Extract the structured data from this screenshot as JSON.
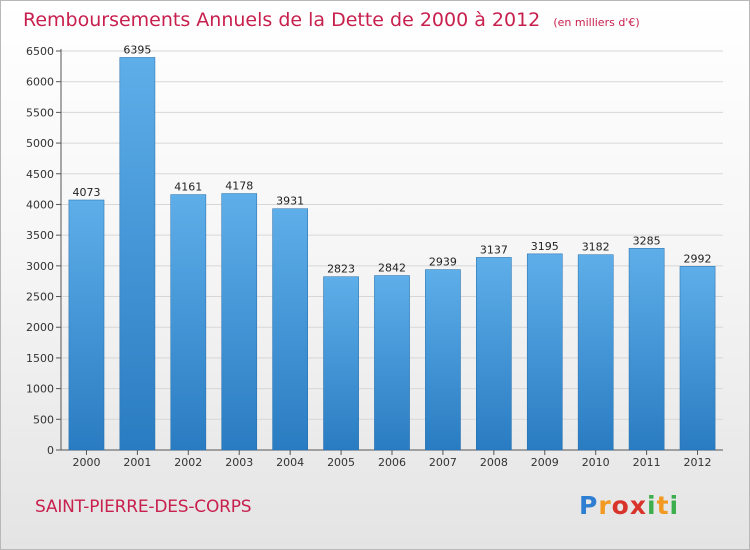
{
  "header": {
    "title": "Remboursements Annuels de la Dette de 2000 à 2012",
    "subtitle": "(en milliers d'€)"
  },
  "footer": {
    "city": "SAINT-PIERRE-DES-CORPS",
    "logo_text": "Proxiti"
  },
  "colors": {
    "bar_light": "#5eaee9",
    "bar_dark": "#2a7cc2",
    "title": "#c8204e"
  },
  "chart_data": {
    "type": "bar",
    "title": "Remboursements Annuels de la Dette de 2000 à 2012",
    "subtitle": "(en milliers d'€)",
    "categories": [
      "2000",
      "2001",
      "2002",
      "2003",
      "2004",
      "2005",
      "2006",
      "2007",
      "2008",
      "2009",
      "2010",
      "2011",
      "2012"
    ],
    "values": [
      4073,
      6395,
      4161,
      4178,
      3931,
      2823,
      2842,
      2939,
      3137,
      3195,
      3182,
      3285,
      2992
    ],
    "ylim": [
      0,
      6500
    ],
    "yticks": [
      0,
      500,
      1000,
      1500,
      2000,
      2500,
      3000,
      3500,
      4000,
      4500,
      5000,
      5500,
      6000,
      6500
    ],
    "grid": true,
    "legend": "none"
  }
}
